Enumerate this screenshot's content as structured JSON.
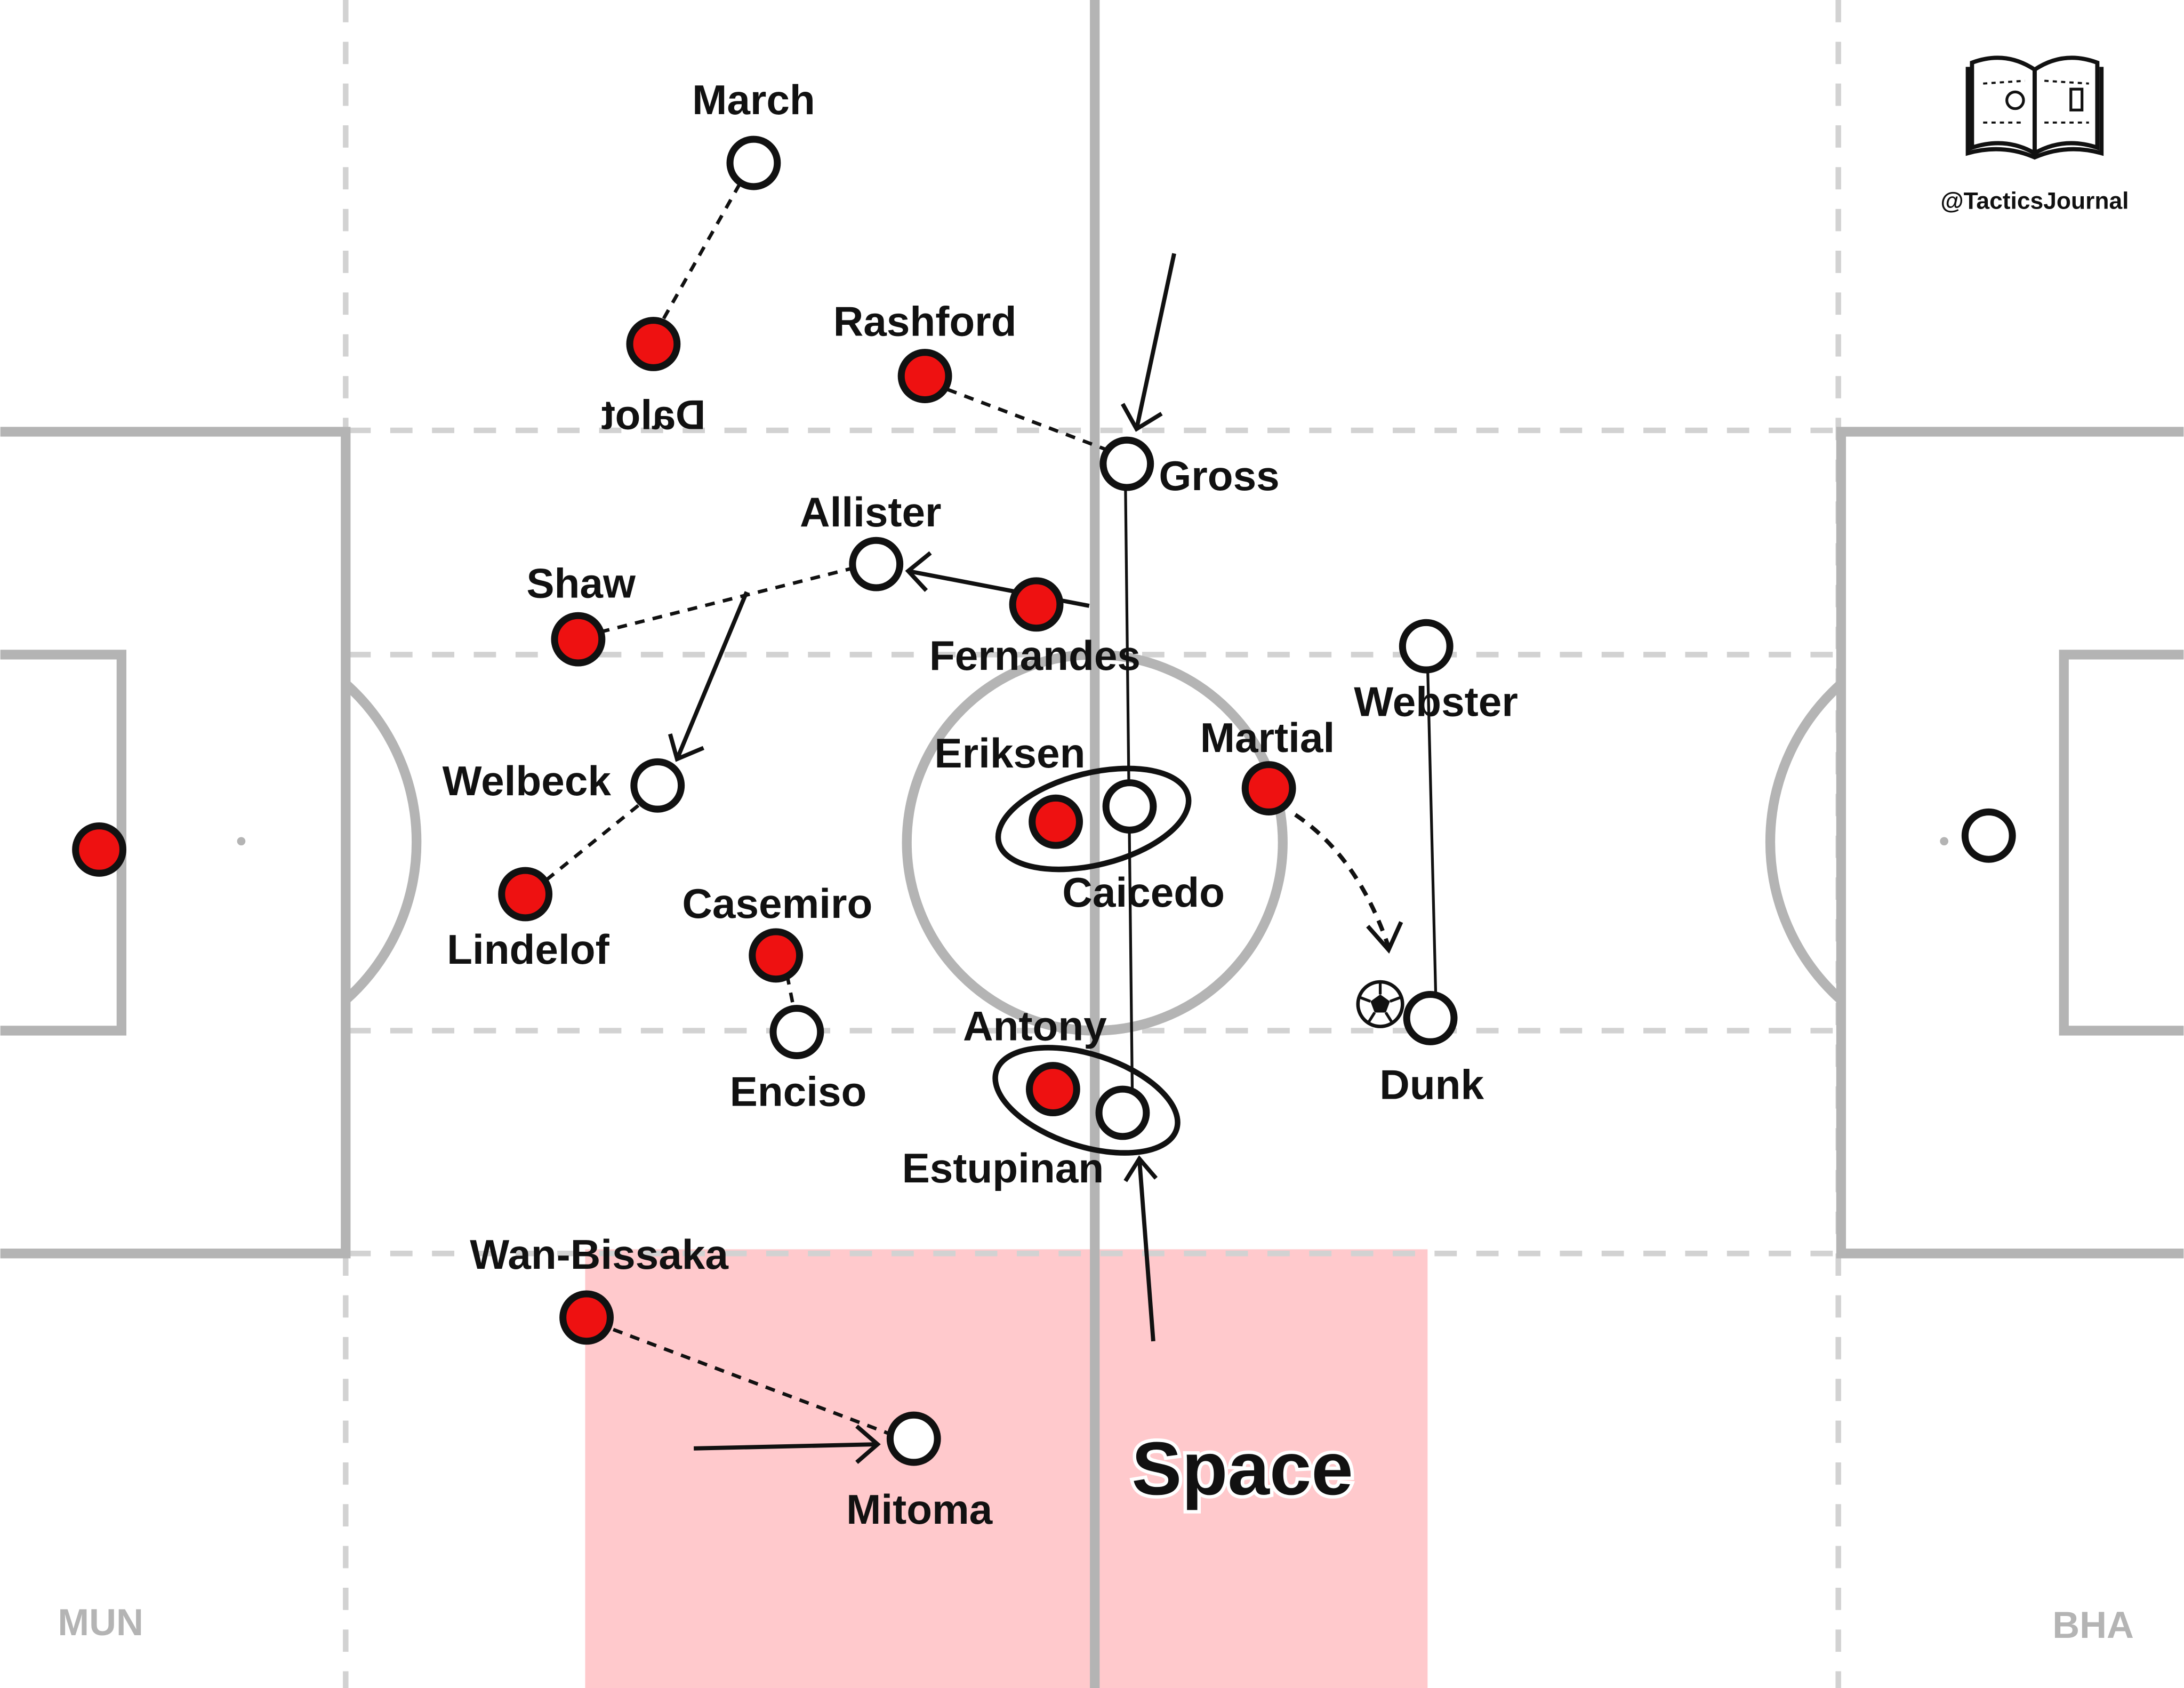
{
  "brand": {
    "handle": "@TacticsJournal",
    "logo": "open-book-with-pitch-logo"
  },
  "teams": {
    "left": "MUN",
    "right": "BHA"
  },
  "space_label": "Space",
  "colors": {
    "pitch_line": "#b4b4b4",
    "dashed_line": "#d2d2d2",
    "red_team": "#ee1111",
    "white_team": "#ffffff",
    "space_zone": "#ffc9cc"
  },
  "players": {
    "red": [
      {
        "id": "mun-gk",
        "label": ""
      },
      {
        "id": "dalot",
        "label": "Dalot",
        "mirrored": true
      },
      {
        "id": "rashford",
        "label": "Rashford"
      },
      {
        "id": "shaw",
        "label": "Shaw"
      },
      {
        "id": "fernandes",
        "label": "Fernandes"
      },
      {
        "id": "lindelof",
        "label": "Lindelof"
      },
      {
        "id": "casemiro",
        "label": "Casemiro"
      },
      {
        "id": "eriksen",
        "label": "Eriksen"
      },
      {
        "id": "martial",
        "label": "Martial"
      },
      {
        "id": "antony",
        "label": "Antony"
      },
      {
        "id": "wan-bissaka",
        "label": "Wan-Bissaka"
      }
    ],
    "white": [
      {
        "id": "bha-gk",
        "label": ""
      },
      {
        "id": "march",
        "label": "March"
      },
      {
        "id": "gross",
        "label": "Gross"
      },
      {
        "id": "allister",
        "label": "Allister"
      },
      {
        "id": "welbeck",
        "label": "Welbeck"
      },
      {
        "id": "webster",
        "label": "Webster"
      },
      {
        "id": "caicedo",
        "label": "Caicedo"
      },
      {
        "id": "enciso",
        "label": "Enciso"
      },
      {
        "id": "dunk",
        "label": "Dunk"
      },
      {
        "id": "estupinan",
        "label": "Estupinan"
      },
      {
        "id": "mitoma",
        "label": "Mitoma"
      }
    ]
  },
  "ball": {
    "icon": "football-icon",
    "holder": "Dunk"
  }
}
